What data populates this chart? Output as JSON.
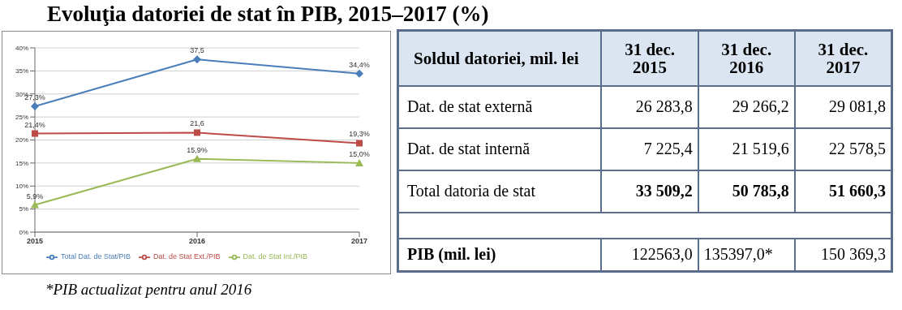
{
  "chart_data": [
    {
      "type": "line",
      "title": "Evoluţia datoriei de stat în PIB, 2015–2017 (%)",
      "categories": [
        "2015",
        "2016",
        "2017"
      ],
      "series": [
        {
          "name": "Total Dat. de Stat/PIB",
          "color": "#4a7ebb",
          "marker": "diamond",
          "values": [
            27.3,
            37.5,
            34.4
          ],
          "value_labels": [
            "27,3%",
            "37,5",
            "34,4%"
          ]
        },
        {
          "name": "Dat. de Stat Ext./PIB",
          "color": "#be4b48",
          "marker": "square",
          "values": [
            21.4,
            21.6,
            19.3
          ],
          "value_labels": [
            "21,4%",
            "21,6",
            "19,3%"
          ]
        },
        {
          "name": "Dat. de Stat Int./PIB",
          "color": "#98b954",
          "marker": "triangle",
          "values": [
            5.9,
            15.9,
            15.0
          ],
          "value_labels": [
            "5,9%",
            "15,9%",
            "15,0%"
          ]
        }
      ],
      "ylim": [
        0,
        40
      ],
      "yticks": [
        {
          "value": 0,
          "label": "0%"
        },
        {
          "value": 5,
          "label": "5%"
        },
        {
          "value": 10,
          "label": "10%"
        },
        {
          "value": 15,
          "label": "15%"
        },
        {
          "value": 20,
          "label": "20%"
        },
        {
          "value": 25,
          "label": "25%"
        },
        {
          "value": 30,
          "label": "30%"
        },
        {
          "value": 35,
          "label": "35%"
        },
        {
          "value": 40,
          "label": "40%"
        }
      ],
      "grid": "y",
      "legend": "bottom"
    },
    {
      "type": "other",
      "title": "Soldul datoriei, mil. lei",
      "categories": [
        "31 dec. 2015",
        "31 dec. 2016",
        "31 dec. 2017"
      ],
      "y_categories": [
        "Dat. de stat externă",
        "Dat. de stat internă",
        "Total datoria de stat",
        "PIB (mil. lei)"
      ],
      "cell_labels": [
        [
          "26 283,8",
          "29 266,2",
          "29 081,8"
        ],
        [
          "7 225,4",
          "21 519,6",
          "22 578,5"
        ],
        [
          "33 509,2",
          "50 785,8",
          "51 660,3"
        ],
        [
          "122563,0",
          "135397,0*",
          "150 369,3"
        ]
      ],
      "annotations": [
        "*PIB actualizat pentru anul 2016"
      ]
    }
  ]
}
